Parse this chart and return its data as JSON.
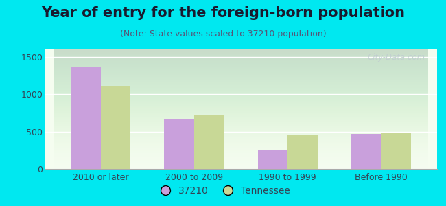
{
  "title": "Year of entry for the foreign-born population",
  "subtitle": "(Note: State values scaled to 37210 population)",
  "categories": [
    "2010 or later",
    "2000 to 2009",
    "1990 to 1999",
    "Before 1990"
  ],
  "values_37210": [
    1370,
    670,
    255,
    465
  ],
  "values_tennessee": [
    1115,
    725,
    460,
    490
  ],
  "color_37210": "#c9a0dc",
  "color_tennessee": "#c8d896",
  "background_outer": "#00e8f0",
  "background_inner_top": "#f5fdf0",
  "background_inner_bottom": "#d8edd8",
  "ylim": [
    0,
    1600
  ],
  "yticks": [
    0,
    500,
    1000,
    1500
  ],
  "bar_width": 0.32,
  "legend_label_37210": "37210",
  "legend_label_tennessee": "Tennessee",
  "title_fontsize": 15,
  "subtitle_fontsize": 9,
  "tick_fontsize": 9,
  "legend_fontsize": 10,
  "title_color": "#1a1a2e",
  "subtitle_color": "#555577",
  "tick_color": "#334455",
  "watermark_color": "#c0ccd0"
}
